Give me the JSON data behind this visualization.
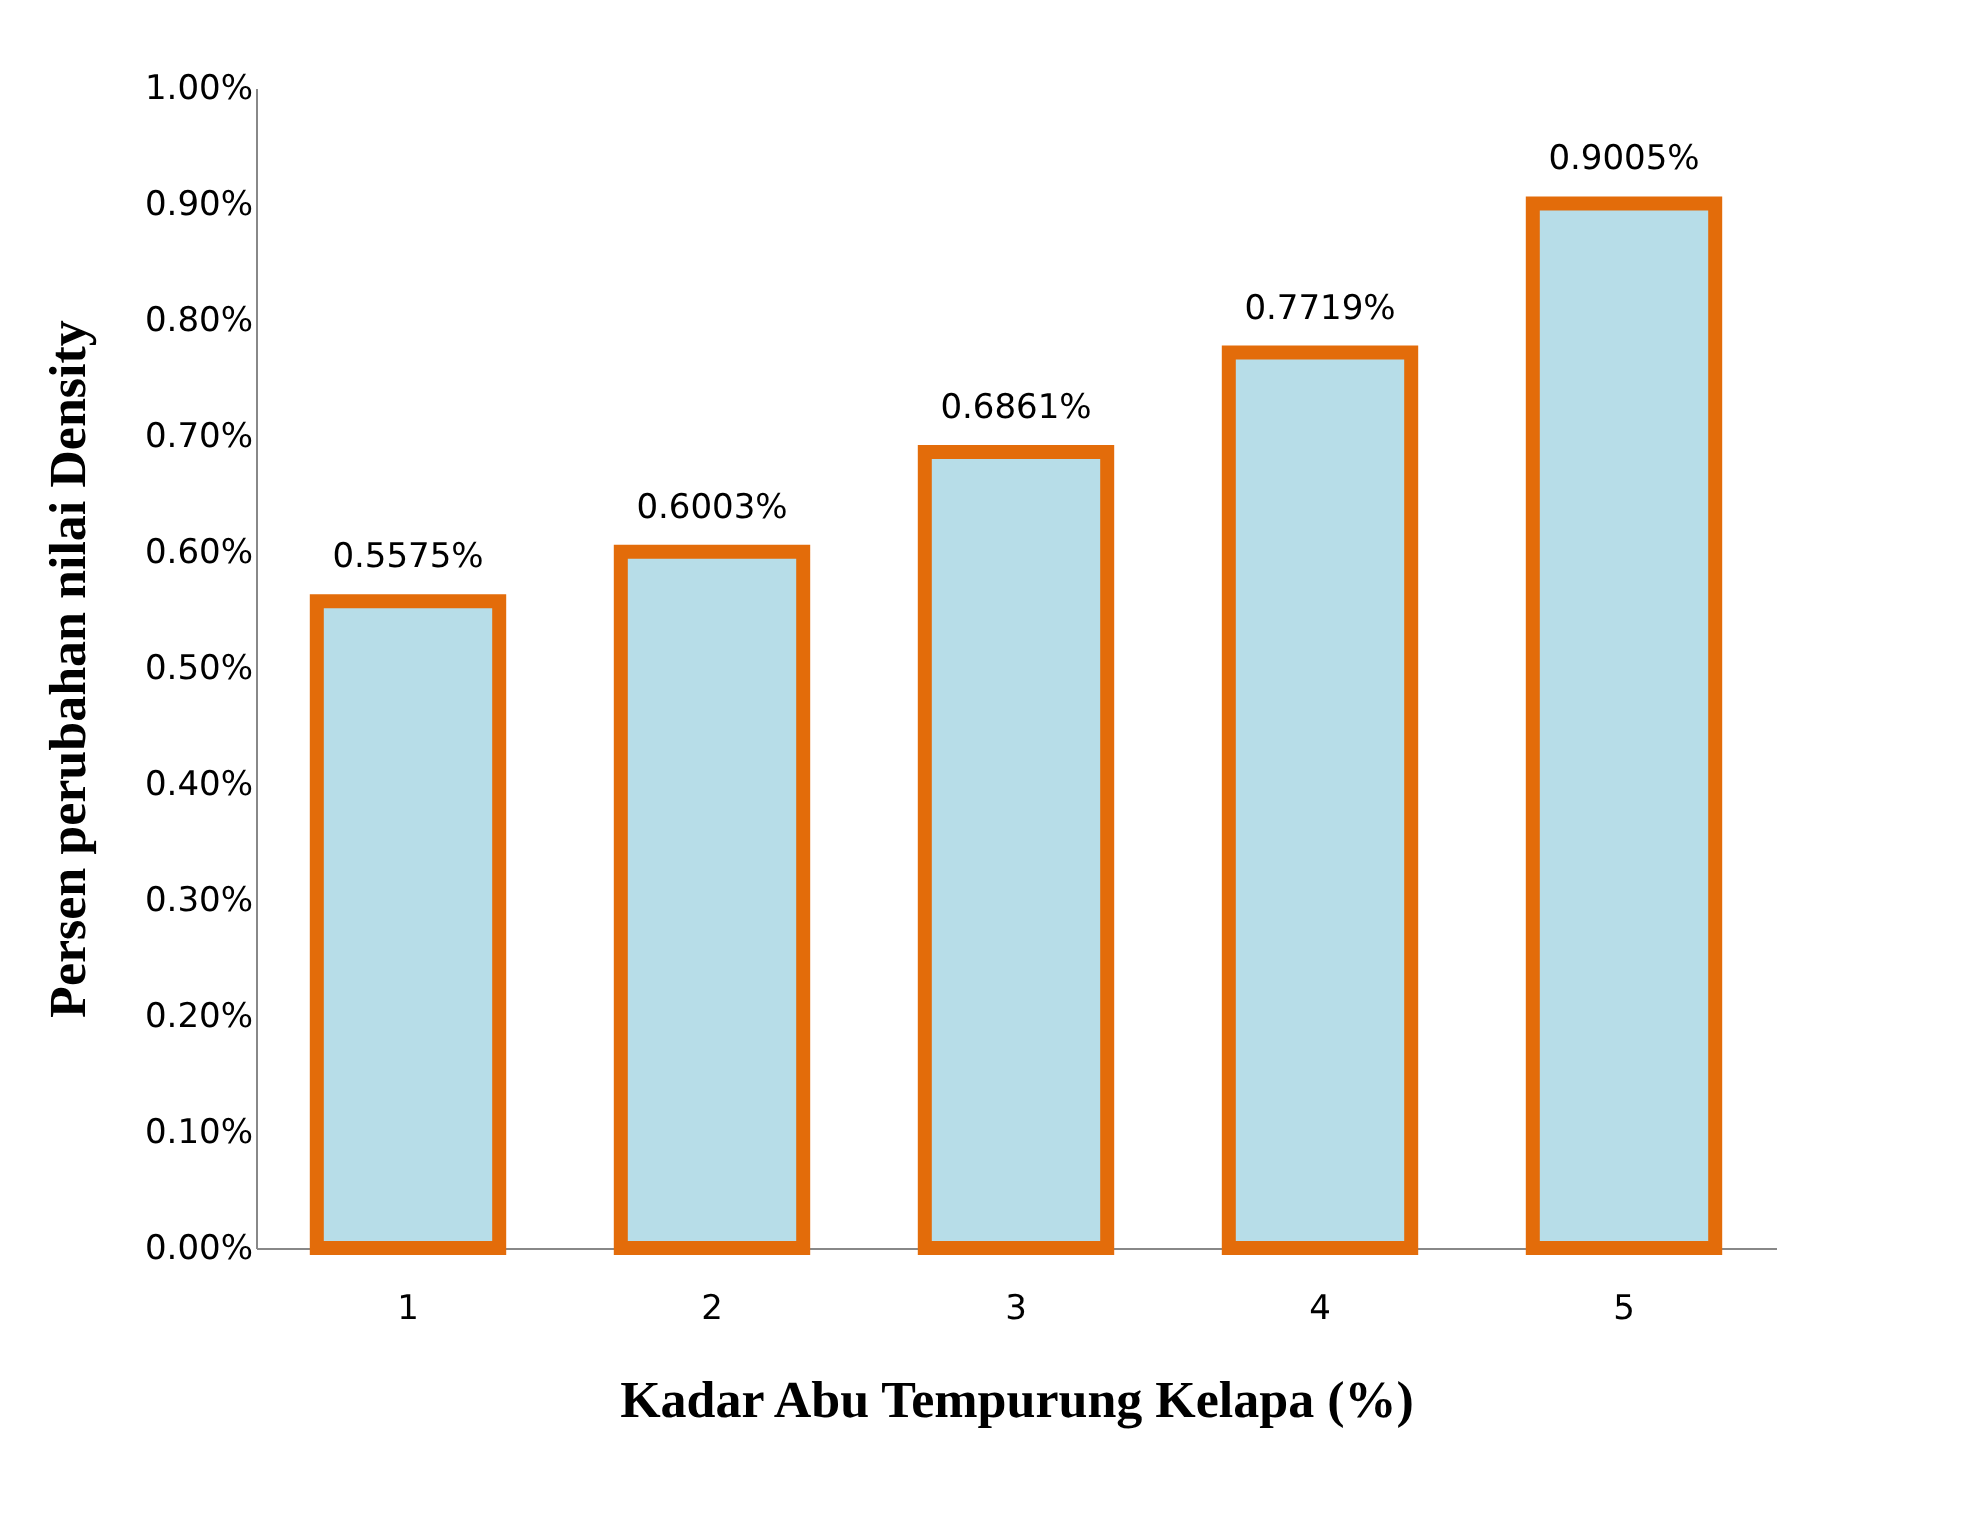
{
  "chart_data": {
    "type": "bar",
    "xlabel": "Kadar Abu Tempurung Kelapa (%)",
    "ylabel": "Persen perubahan nilai Density",
    "categories": [
      "1",
      "2",
      "3",
      "4",
      "5"
    ],
    "values": [
      0.5575,
      0.6003,
      0.6861,
      0.7719,
      0.9005
    ],
    "value_labels": [
      "0.5575%",
      "0.6003%",
      "0.6861%",
      "0.7719%",
      "0.9005%"
    ],
    "color": "#b7dde8",
    "ylim": [
      0,
      1
    ],
    "yticks": [
      {
        "value": 0,
        "label": "0.00%"
      },
      {
        "value": 0.1,
        "label": "0.10%"
      },
      {
        "value": 0.2,
        "label": "0.20%"
      },
      {
        "value": 0.3,
        "label": "0.30%"
      },
      {
        "value": 0.4,
        "label": "0.40%"
      },
      {
        "value": 0.5,
        "label": "0.50%"
      },
      {
        "value": 0.6,
        "label": "0.60%"
      },
      {
        "value": 0.7,
        "label": "0.70%"
      },
      {
        "value": 0.8,
        "label": "0.80%"
      },
      {
        "value": 0.9,
        "label": "0.90%"
      },
      {
        "value": 1,
        "label": "1.00%"
      }
    ],
    "grid": false
  }
}
